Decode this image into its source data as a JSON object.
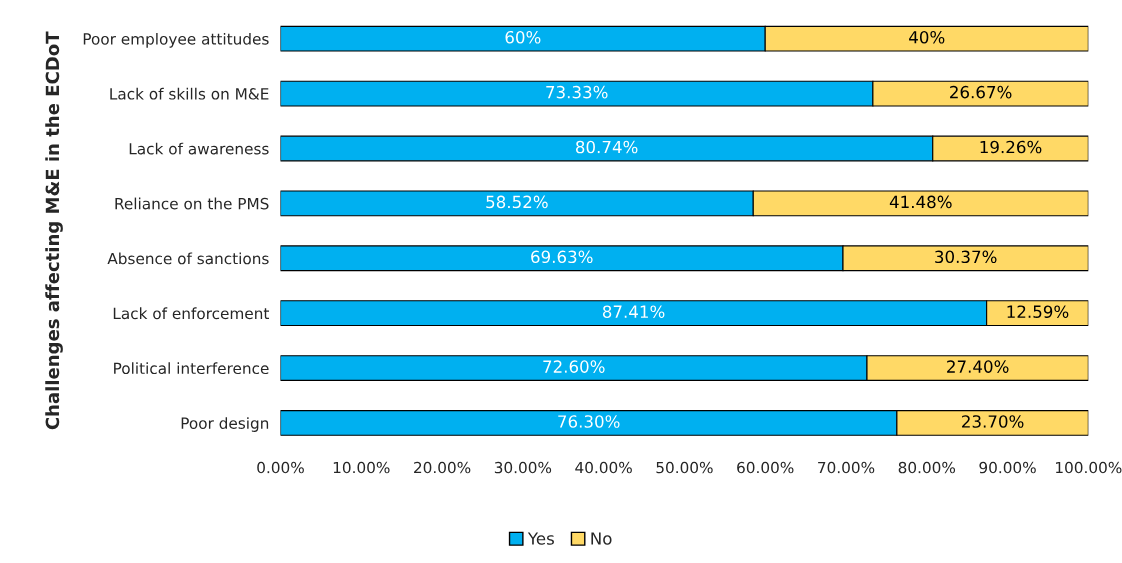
{
  "chart_data": {
    "type": "bar",
    "orientation": "horizontal",
    "stacked": true,
    "ylabel": "Challenges affecting M&E in the ECDoT",
    "categories": [
      "Poor employee attitudes",
      "Lack of skills on M&E",
      "Lack of awareness",
      "Reliance on the PMS",
      "Absence of sanctions",
      "Lack of enforcement",
      "Political interference",
      "Poor design"
    ],
    "series": [
      {
        "name": "Yes",
        "color": "#00b0f0",
        "values": [
          60,
          73.33,
          80.74,
          58.52,
          69.63,
          87.41,
          72.6,
          76.3
        ],
        "value_labels": [
          "60%",
          "73.33%",
          "80.74%",
          "58.52%",
          "69.63%",
          "87.41%",
          "72.60%",
          "76.30%"
        ]
      },
      {
        "name": "No",
        "color": "#ffd966",
        "values": [
          40,
          26.67,
          19.26,
          41.48,
          30.37,
          12.59,
          27.4,
          23.7
        ],
        "value_labels": [
          "40%",
          "26.67%",
          "19.26%",
          "41.48%",
          "30.37%",
          "12.59%",
          "27.40%",
          "23.70%"
        ]
      }
    ],
    "xlim": [
      0,
      100
    ],
    "xticks": [
      {
        "value": 0,
        "label": "0.00%"
      },
      {
        "value": 10,
        "label": "10.00%"
      },
      {
        "value": 20,
        "label": "20.00%"
      },
      {
        "value": 30,
        "label": "30.00%"
      },
      {
        "value": 40,
        "label": "40.00%"
      },
      {
        "value": 50,
        "label": "50.00%"
      },
      {
        "value": 60,
        "label": "60.00%"
      },
      {
        "value": 70,
        "label": "70.00%"
      },
      {
        "value": 80,
        "label": "80.00%"
      },
      {
        "value": 90,
        "label": "90.00%"
      },
      {
        "value": 100,
        "label": "100.00%"
      }
    ],
    "grid": false,
    "legend": "bottom"
  }
}
